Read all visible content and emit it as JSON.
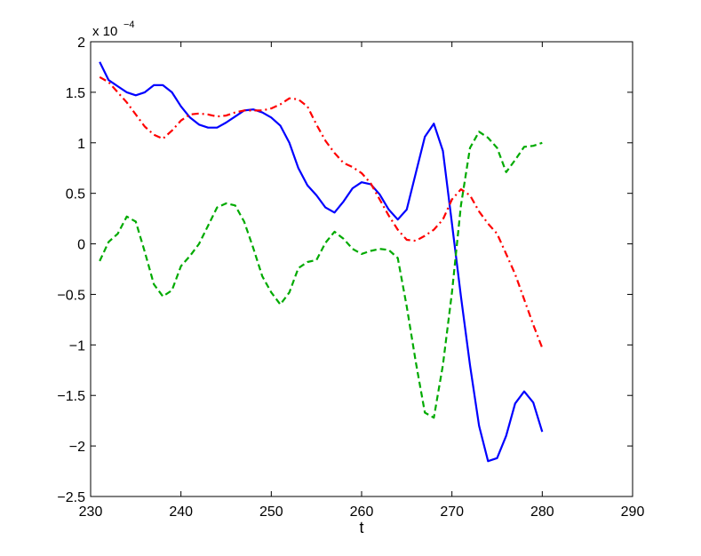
{
  "chart_data": {
    "type": "line",
    "title": "",
    "xlabel": "t",
    "ylabel": "",
    "y_multiplier_label": "x 10",
    "y_multiplier_exponent": "−4",
    "xlim": [
      230,
      290
    ],
    "ylim": [
      -2.5,
      2
    ],
    "x_ticks": [
      230,
      240,
      250,
      260,
      270,
      280,
      290
    ],
    "y_ticks": [
      2,
      1.5,
      1,
      0.5,
      0,
      -0.5,
      -1,
      -1.5,
      -2,
      -2.5
    ],
    "x_tick_labels": [
      "230",
      "240",
      "250",
      "260",
      "270",
      "280",
      "290"
    ],
    "y_tick_labels": [
      "2",
      "1.5",
      "1",
      "0.5",
      "0",
      "−0.5",
      "−1",
      "−1.5",
      "−2",
      "−2.5"
    ],
    "grid": false,
    "x": [
      231,
      232,
      233,
      234,
      235,
      236,
      237,
      238,
      239,
      240,
      241,
      242,
      243,
      244,
      245,
      246,
      247,
      248,
      249,
      250,
      251,
      252,
      253,
      254,
      255,
      256,
      257,
      258,
      259,
      260,
      261,
      262,
      263,
      264,
      265,
      266,
      267,
      268,
      269,
      270,
      271,
      272,
      273,
      274,
      275,
      276,
      277,
      278,
      279,
      280
    ],
    "series": [
      {
        "color": "#0000ff",
        "style": "solid",
        "values": [
          1.8,
          1.62,
          1.56,
          1.5,
          1.47,
          1.5,
          1.57,
          1.57,
          1.5,
          1.36,
          1.25,
          1.18,
          1.15,
          1.15,
          1.2,
          1.26,
          1.32,
          1.33,
          1.3,
          1.25,
          1.17,
          1.0,
          0.75,
          0.58,
          0.48,
          0.36,
          0.31,
          0.42,
          0.55,
          0.61,
          0.59,
          0.49,
          0.34,
          0.24,
          0.34,
          0.7,
          1.06,
          1.19,
          0.92,
          0.2,
          -0.52,
          -1.2,
          -1.8,
          -2.15,
          -2.12,
          -1.9,
          -1.58,
          -1.46,
          -1.57,
          -1.86
        ]
      },
      {
        "color": "#00aa00",
        "style": "dashed",
        "values": [
          -0.17,
          0.02,
          0.1,
          0.27,
          0.22,
          -0.08,
          -0.4,
          -0.52,
          -0.46,
          -0.22,
          -0.12,
          0.0,
          0.18,
          0.36,
          0.4,
          0.38,
          0.22,
          -0.04,
          -0.32,
          -0.48,
          -0.6,
          -0.48,
          -0.24,
          -0.18,
          -0.16,
          0.01,
          0.12,
          0.05,
          -0.05,
          -0.1,
          -0.07,
          -0.05,
          -0.06,
          -0.14,
          -0.62,
          -1.17,
          -1.67,
          -1.72,
          -1.2,
          -0.48,
          0.38,
          0.95,
          1.11,
          1.05,
          0.95,
          0.71,
          0.83,
          0.96,
          0.97,
          1.0
        ]
      },
      {
        "color": "#ff0000",
        "style": "dashdot",
        "values": [
          1.65,
          1.6,
          1.5,
          1.4,
          1.28,
          1.16,
          1.08,
          1.04,
          1.12,
          1.22,
          1.28,
          1.29,
          1.28,
          1.26,
          1.27,
          1.3,
          1.32,
          1.32,
          1.32,
          1.34,
          1.38,
          1.44,
          1.43,
          1.36,
          1.18,
          1.02,
          0.9,
          0.8,
          0.76,
          0.7,
          0.6,
          0.44,
          0.28,
          0.14,
          0.04,
          0.03,
          0.08,
          0.14,
          0.24,
          0.44,
          0.54,
          0.48,
          0.32,
          0.2,
          0.1,
          -0.1,
          -0.3,
          -0.55,
          -0.8,
          -1.03
        ]
      }
    ]
  }
}
